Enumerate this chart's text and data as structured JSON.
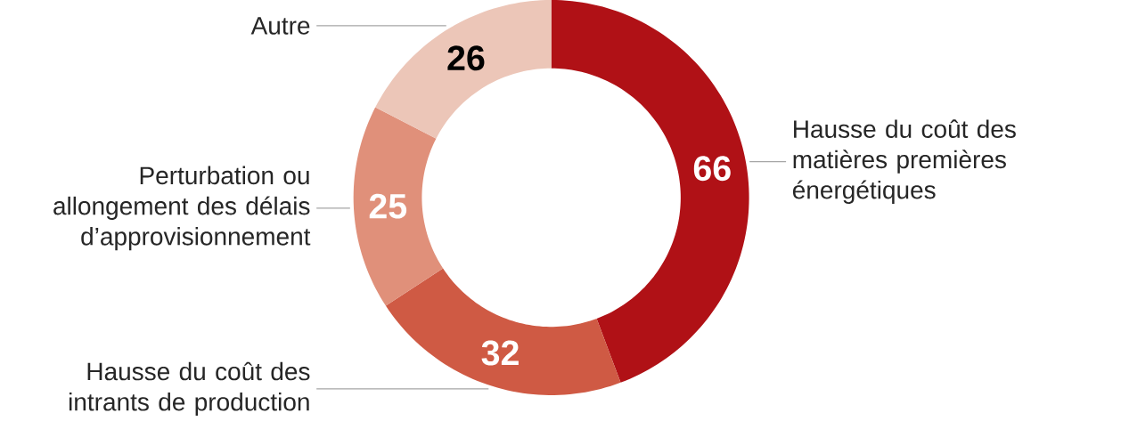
{
  "chart_data": {
    "type": "donut",
    "categories": [
      "Hausse du coût des matières premières énergétiques",
      "Hausse du coût des intrants de production",
      "Perturbation ou allongement des délais d’approvisionnement",
      "Autre"
    ],
    "values": [
      66,
      32,
      25,
      26
    ],
    "colors": [
      "#b01116",
      "#cf5a44",
      "#e0907a",
      "#ecc6b8"
    ],
    "data_labels": true
  }
}
